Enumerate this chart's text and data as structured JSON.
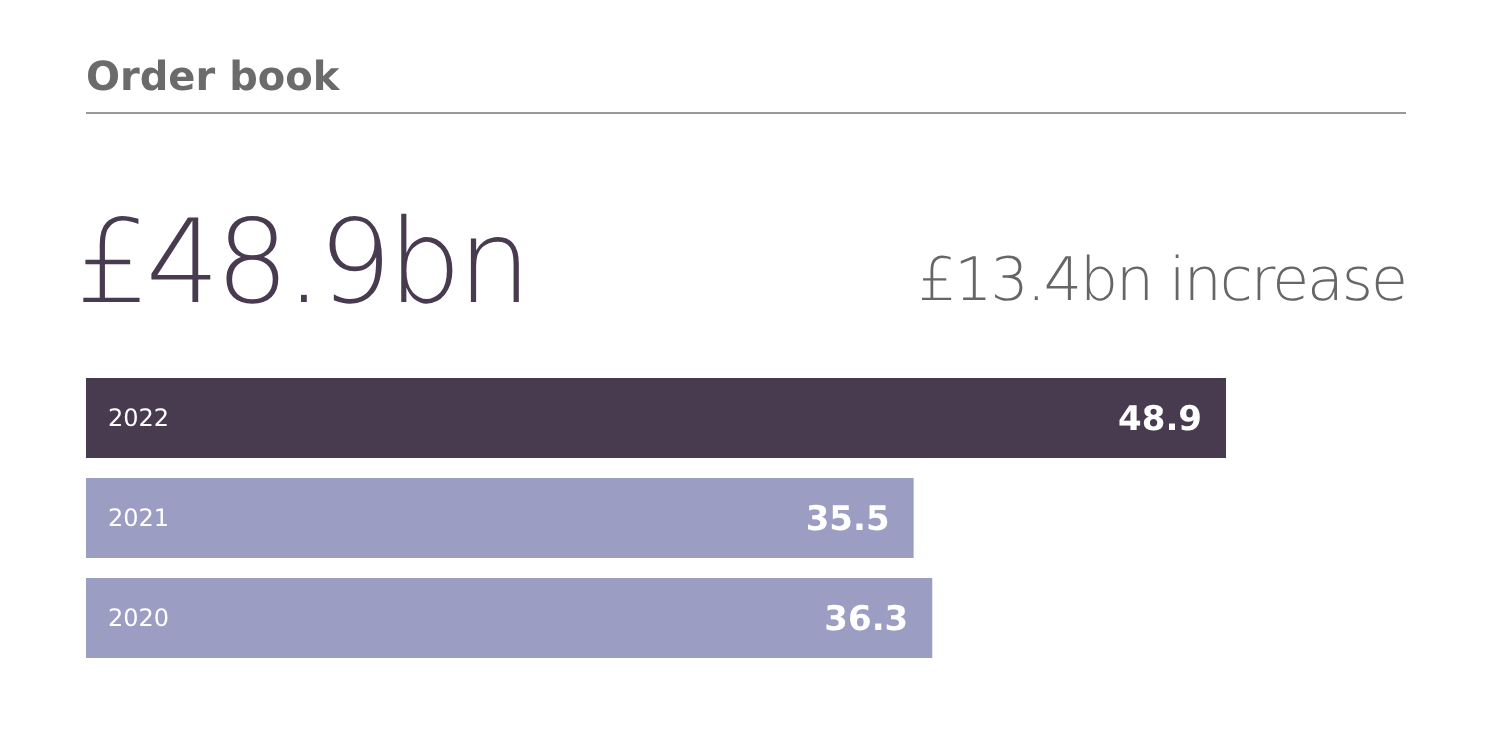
{
  "chart_data": {
    "type": "bar",
    "orientation": "horizontal",
    "title": "Order book",
    "annotations": [
      "£48.9bn",
      "£13.4bn increase"
    ],
    "categories": [
      "2022",
      "2021",
      "2020"
    ],
    "values": [
      48.9,
      35.5,
      36.3
    ],
    "colors": [
      "#483a4f",
      "#9b9dc3",
      "#9b9dc3"
    ],
    "data_labels": true
  }
}
